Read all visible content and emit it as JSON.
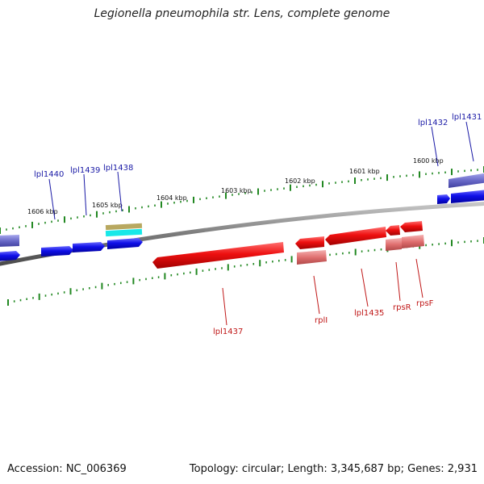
{
  "title": "Legionella pneumophila str. Lens, complete genome",
  "footer": {
    "accession": "Accession: NC_006369",
    "summary": "Topology: circular; Length: 3,345,687 bp; Genes: 2,931"
  },
  "ticks": [
    {
      "kbp": 1606,
      "label": "1606 kbp"
    },
    {
      "kbp": 1605,
      "label": "1605 kbp"
    },
    {
      "kbp": 1604,
      "label": "1604 kbp"
    },
    {
      "kbp": 1603,
      "label": "1603 kbp"
    },
    {
      "kbp": 1602,
      "label": "1602 kbp"
    },
    {
      "kbp": 1601,
      "label": "1601 kbp"
    },
    {
      "kbp": 1600,
      "label": "1600 kbp"
    }
  ],
  "genes_forward": [
    {
      "label": "lpl1440"
    },
    {
      "label": "lpl1439"
    },
    {
      "label": "lpl1438"
    },
    {
      "label": "lpl1432"
    },
    {
      "label": "lpl1431"
    }
  ],
  "genes_reverse": [
    {
      "label": "lpl1437"
    },
    {
      "label": "rplI"
    },
    {
      "label": "lpl1435"
    },
    {
      "label": "rpsR"
    },
    {
      "label": "rpsF"
    }
  ],
  "colors": {
    "forward_cds": "#1010e0",
    "reverse_cds": "#ee1010",
    "reverse_rna": "#e88080",
    "forward_feature": "#7070cc",
    "tick": "#228822",
    "backbone": "#7a7a7a"
  }
}
